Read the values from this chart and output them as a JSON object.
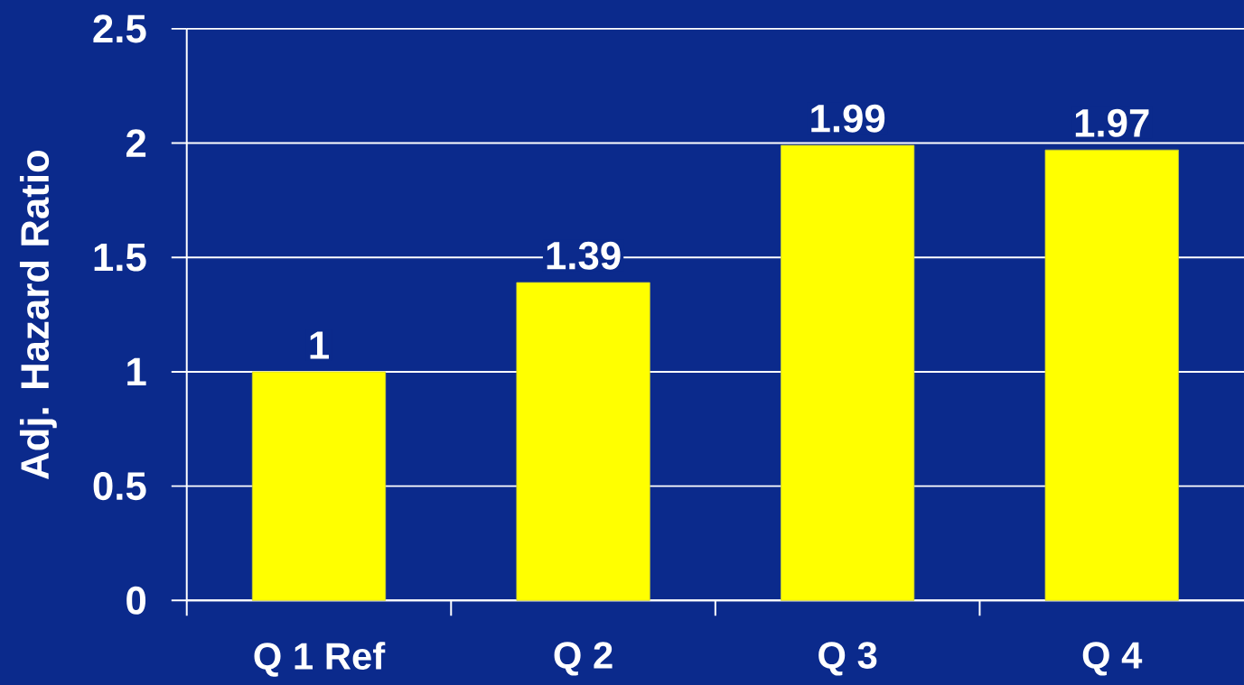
{
  "chart_data": {
    "type": "bar",
    "categories": [
      "Q 1 Ref",
      "Q 2",
      "Q 3",
      "Q 4"
    ],
    "values": [
      1,
      1.39,
      1.99,
      1.97
    ],
    "color": "#ffff00",
    "ylabel": "Adj. Hazard Ratio",
    "ylim": [
      0,
      2.5
    ],
    "yticks": [
      0,
      0.5,
      1,
      1.5,
      2,
      2.5
    ],
    "grid": "y",
    "data_labels": true
  }
}
